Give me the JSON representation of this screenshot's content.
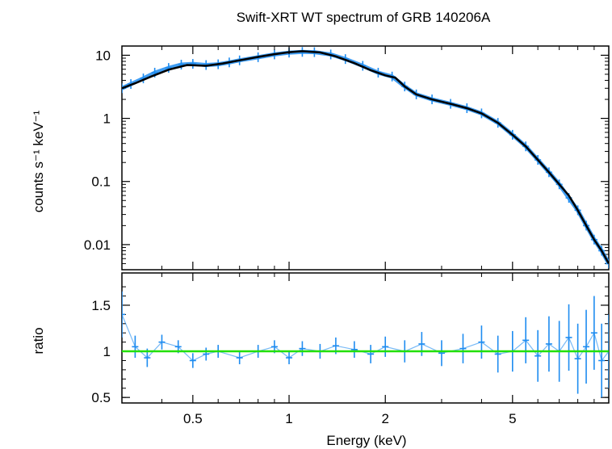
{
  "chart_data": [
    {
      "type": "scatter",
      "title": "Swift-XRT WT spectrum of GRB 140206A",
      "xlabel": "Energy (keV)",
      "ylabel": "counts s⁻¹ keV⁻¹",
      "xscale": "log",
      "yscale": "log",
      "xlim": [
        0.3,
        10
      ],
      "ylim": [
        0.004,
        14
      ],
      "yticks": [
        {
          "value": 0.01,
          "label": "0.01"
        },
        {
          "value": 0.1,
          "label": "0.1"
        },
        {
          "value": 1,
          "label": "1"
        },
        {
          "value": 10,
          "label": "10"
        }
      ],
      "series": [
        {
          "kind": "data-with-errors",
          "color": "#1e8cf0",
          "x": [
            0.3,
            0.32,
            0.35,
            0.38,
            0.42,
            0.46,
            0.5,
            0.55,
            0.6,
            0.65,
            0.7,
            0.8,
            0.9,
            1.0,
            1.1,
            1.2,
            1.35,
            1.5,
            1.7,
            1.9,
            2.1,
            2.3,
            2.5,
            2.8,
            3.2,
            3.6,
            4.0,
            4.5,
            5.0,
            5.5,
            6.0,
            6.5,
            7.0,
            7.5,
            8.0,
            8.5,
            9.0,
            9.5,
            10.0
          ],
          "y": [
            3.0,
            3.5,
            4.3,
            5.3,
            6.3,
            7.1,
            7.3,
            7.0,
            7.2,
            7.7,
            8.3,
            9.3,
            10.3,
            11.0,
            11.3,
            11.2,
            10.3,
            8.7,
            6.8,
            5.3,
            4.6,
            3.2,
            2.4,
            2.0,
            1.7,
            1.45,
            1.2,
            0.85,
            0.55,
            0.36,
            0.22,
            0.14,
            0.09,
            0.055,
            0.035,
            0.02,
            0.012,
            0.008,
            0.005
          ]
        },
        {
          "kind": "model",
          "color": "#000000",
          "x": [
            0.3,
            0.33,
            0.37,
            0.42,
            0.48,
            0.55,
            0.62,
            0.7,
            0.8,
            0.9,
            1.0,
            1.1,
            1.25,
            1.4,
            1.6,
            1.8,
            2.0,
            2.15,
            2.3,
            2.5,
            2.8,
            3.2,
            3.6,
            4.0,
            4.5,
            5.0,
            5.5,
            6.0,
            6.5,
            7.0,
            7.5,
            8.0,
            8.5,
            9.0,
            9.5,
            10.0
          ],
          "y": [
            3.0,
            3.6,
            4.6,
            5.9,
            7.0,
            6.8,
            7.4,
            8.3,
            9.4,
            10.4,
            11.2,
            11.6,
            11.1,
            9.6,
            7.5,
            5.8,
            4.8,
            4.4,
            3.2,
            2.4,
            2.0,
            1.7,
            1.45,
            1.2,
            0.85,
            0.55,
            0.36,
            0.22,
            0.14,
            0.09,
            0.06,
            0.035,
            0.02,
            0.012,
            0.008,
            0.005
          ]
        }
      ]
    },
    {
      "type": "scatter",
      "title": "",
      "xlabel": "Energy (keV)",
      "ylabel": "ratio",
      "xscale": "log",
      "yscale": "linear",
      "xlim": [
        0.3,
        10
      ],
      "ylim": [
        0.44,
        1.85
      ],
      "xticks": [
        {
          "value": 0.5,
          "label": "0.5"
        },
        {
          "value": 1,
          "label": "1"
        },
        {
          "value": 2,
          "label": "2"
        },
        {
          "value": 5,
          "label": "5"
        }
      ],
      "yticks": [
        {
          "value": 0.5,
          "label": "0.5"
        },
        {
          "value": 1,
          "label": "1"
        },
        {
          "value": 1.5,
          "label": "1.5"
        }
      ],
      "reference_line": {
        "value": 1,
        "color": "#22e000"
      },
      "series": [
        {
          "kind": "ratio-with-errors",
          "color": "#1e8cf0",
          "x": [
            0.3,
            0.33,
            0.36,
            0.4,
            0.45,
            0.5,
            0.55,
            0.6,
            0.7,
            0.8,
            0.9,
            1.0,
            1.1,
            1.25,
            1.4,
            1.6,
            1.8,
            2.0,
            2.3,
            2.6,
            3.0,
            3.5,
            4.0,
            4.5,
            5.0,
            5.5,
            6.0,
            6.5,
            7.0,
            7.5,
            8.0,
            8.5,
            9.0,
            9.5,
            10.0
          ],
          "y": [
            1.4,
            1.05,
            0.93,
            1.1,
            1.05,
            0.9,
            0.97,
            1.0,
            0.93,
            1.0,
            1.05,
            0.93,
            1.03,
            1.0,
            1.06,
            1.02,
            0.97,
            1.05,
            1.0,
            1.08,
            0.98,
            1.03,
            1.1,
            0.97,
            1.0,
            1.12,
            0.95,
            1.08,
            1.0,
            1.15,
            0.92,
            1.05,
            1.2,
            0.9,
            1.0
          ],
          "err": [
            0.25,
            0.12,
            0.1,
            0.08,
            0.07,
            0.08,
            0.07,
            0.07,
            0.07,
            0.07,
            0.07,
            0.07,
            0.08,
            0.08,
            0.09,
            0.09,
            0.1,
            0.11,
            0.12,
            0.13,
            0.14,
            0.16,
            0.18,
            0.2,
            0.22,
            0.25,
            0.28,
            0.3,
            0.33,
            0.36,
            0.38,
            0.4,
            0.4,
            0.4,
            0.4
          ]
        }
      ]
    }
  ]
}
